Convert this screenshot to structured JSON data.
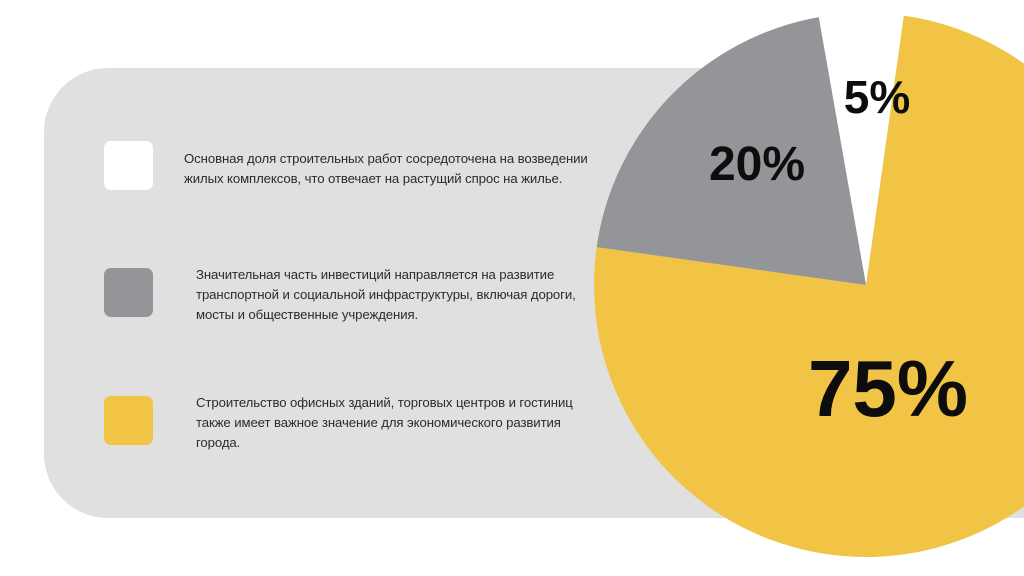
{
  "chart_data": {
    "type": "pie",
    "slices": [
      {
        "value": 5,
        "label": "5%",
        "color": "#ffffff",
        "description": "Основная доля строительных работ сосредоточена на возведении жилых комплексов, что отвечает на растущий спрос на жилье."
      },
      {
        "value": 20,
        "label": "20%",
        "color": "#939598",
        "description": "Значительная часть инвестиций направляется на развитие транспортной и социальной инфраструктуры, включая дороги, мосты и общественные учреждения."
      },
      {
        "value": 75,
        "label": "75%",
        "color": "#f2c445",
        "description": "Строительство офисных зданий, торговых центров и гостиниц также имеет важное значение для экономического развития города."
      }
    ]
  },
  "legend": [
    {
      "lines": [
        "Основная доля строительных работ сосредоточена на возведении",
        "жилых комплексов, что отвечает на растущий спрос на жилье."
      ]
    },
    {
      "lines": [
        "Значительная часть инвестиций направляется на развитие",
        "транспортной и социальной инфраструктуры, включая дороги,",
        "мосты и общественные учреждения."
      ]
    },
    {
      "lines": [
        "Строительство офисных зданий, торговых центров и гостиниц",
        "также имеет важное значение для экономического развития",
        "города."
      ]
    }
  ]
}
